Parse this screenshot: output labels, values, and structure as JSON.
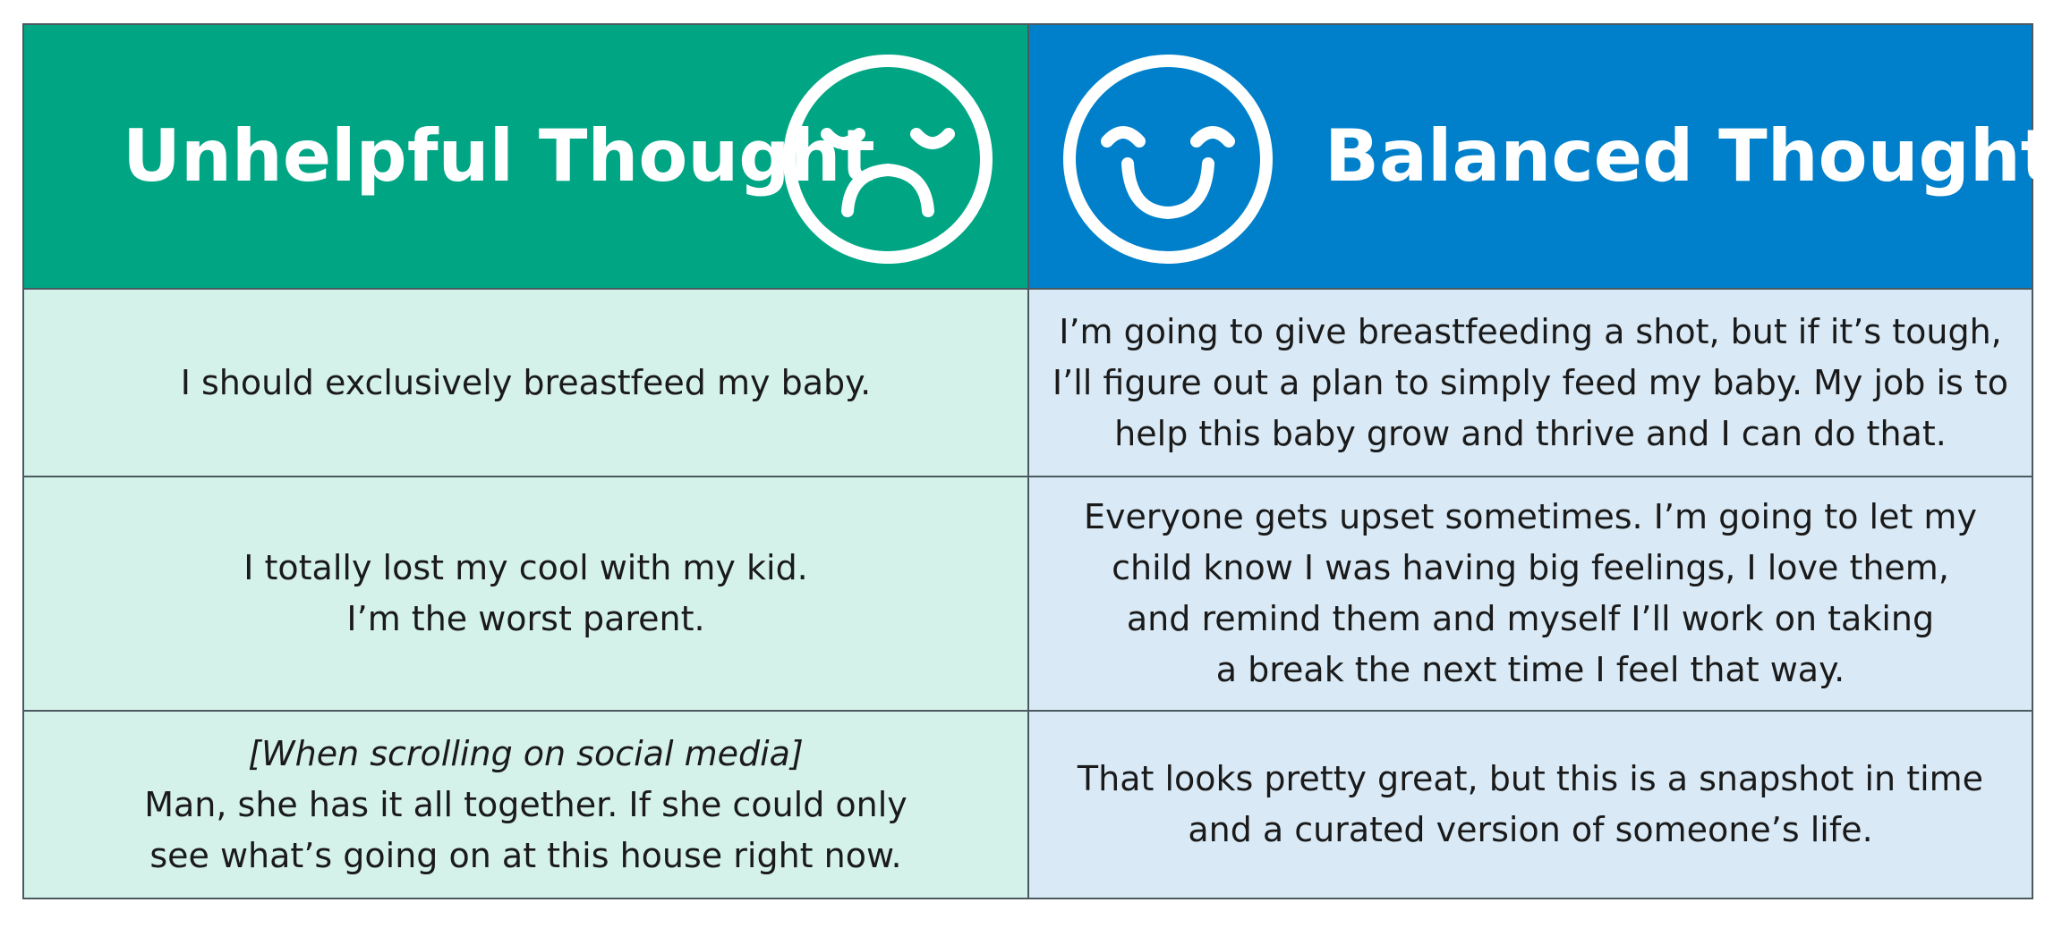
{
  "header": {
    "left": "Unhelpful Thought",
    "right": "Balanced Thought"
  },
  "rows": [
    {
      "left": [
        "I should exclusively breastfeed my baby."
      ],
      "right": [
        "I’m going to give breastfeeding a shot, but if it’s tough,",
        "I’ll figure out a plan to simply feed my baby. My job is to",
        "help this baby grow and thrive and I can do that."
      ]
    },
    {
      "left": [
        "I totally lost my cool with my kid.",
        "I’m the worst parent."
      ],
      "right": [
        "Everyone gets upset sometimes. I’m going to let my",
        "child know I was having big feelings, I love them,",
        "and remind them and myself I’ll work on taking",
        "a break the next time I feel that way."
      ]
    },
    {
      "context": "[When scrolling on social media]",
      "left": [
        "Man, she has it all together. If she could only",
        "see what’s going on at this house right now."
      ],
      "right": [
        "That looks pretty great, but this is a snapshot in time",
        "and a curated version of someone’s life."
      ]
    }
  ]
}
